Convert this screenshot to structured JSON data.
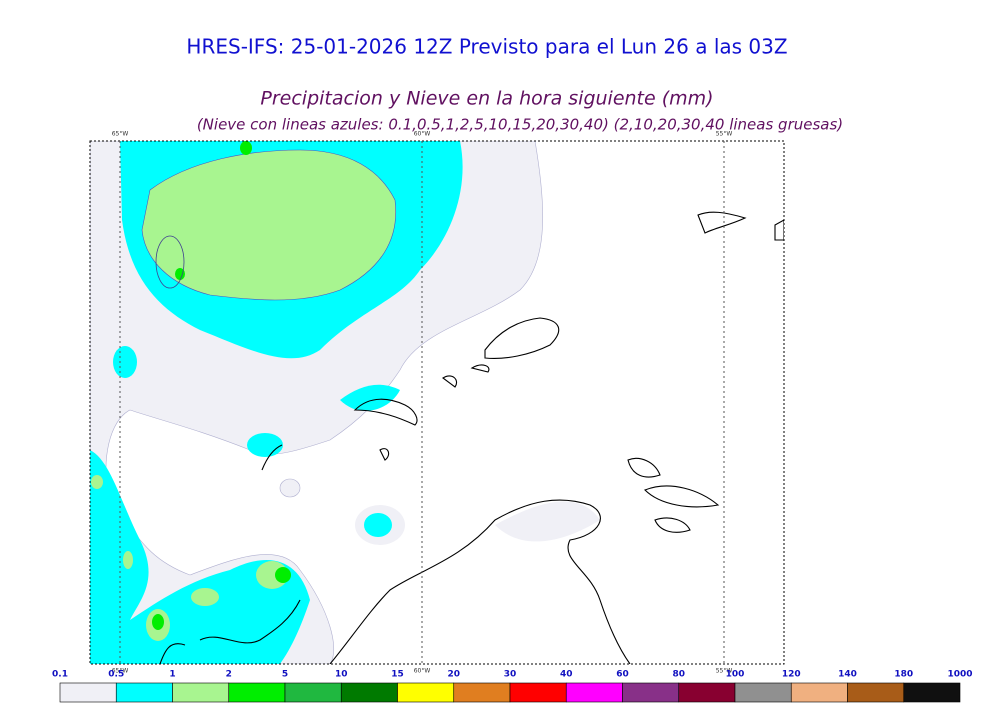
{
  "header": {
    "title": "HRES-IFS: 25-01-2026 12Z Previsto para el Lun 26 a las 03Z",
    "subtitle": "Precipitacion y Nieve en la hora siguiente (mm)",
    "note": "(Nieve con lineas azules: 0.1,0.5,1,2,5,10,15,20,30,40)  (2,10,20,30,40 lineas gruesas)"
  },
  "map": {
    "lon_labels": [
      "65°W",
      "60°W",
      "55°W"
    ]
  },
  "colorbar": {
    "labels": [
      "0.1",
      "0.5",
      "1",
      "2",
      "5",
      "10",
      "15",
      "20",
      "30",
      "40",
      "60",
      "80",
      "100",
      "120",
      "140",
      "180",
      "1000"
    ],
    "colors": [
      "#f0f0f6",
      "#00ffff",
      "#a8f590",
      "#00ee00",
      "#20b840",
      "#007a00",
      "#ffff00",
      "#e07e20",
      "#ff0000",
      "#ff00ff",
      "#883088",
      "#880030",
      "#909090",
      "#f0b080",
      "#a85c18",
      "#101010"
    ]
  }
}
